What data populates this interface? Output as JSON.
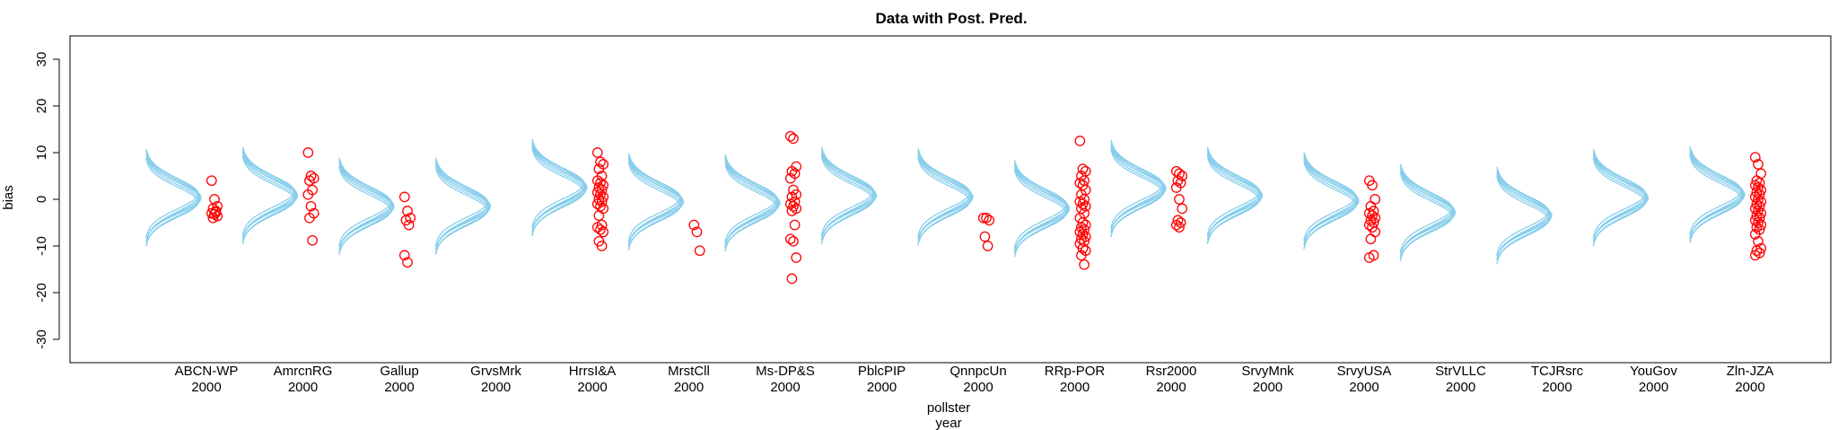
{
  "chart_data": {
    "type": "scatter",
    "title": "Data with Post. Pred.",
    "ylabel": "bias",
    "xlabel_line1": "pollster",
    "xlabel_line2": "year",
    "ylim": [
      -35,
      35
    ],
    "yticks": [
      -30,
      -20,
      -10,
      0,
      10,
      20,
      30
    ],
    "grid": false,
    "legend": "none",
    "colors": {
      "curves": "#87CEEB",
      "points": "#FF0000",
      "axes": "#000000"
    },
    "groups": [
      {
        "pollster": "ABCN-WP",
        "year": "2000",
        "curve_center": 0.3,
        "points": [
          4.0,
          0.0,
          -1.5,
          -2.0,
          -2.5,
          -3.0,
          -3.2,
          -3.6,
          -4.0,
          -2.8
        ]
      },
      {
        "pollster": "AmrcnRG",
        "year": "2000",
        "curve_center": 0.8,
        "points": [
          10.0,
          5.0,
          4.5,
          4.0,
          2.0,
          1.0,
          -1.5,
          -3.0,
          -4.0,
          -8.8
        ]
      },
      {
        "pollster": "Gallup",
        "year": "2000",
        "curve_center": -1.5,
        "points": [
          0.5,
          -2.5,
          -4.0,
          -4.5,
          -5.5,
          -12.0,
          -13.5
        ]
      },
      {
        "pollster": "GrvsMrk",
        "year": "2000",
        "curve_center": -1.5,
        "points": []
      },
      {
        "pollster": "HrrsI&A",
        "year": "2000",
        "curve_center": 2.5,
        "points": [
          10.0,
          8.0,
          7.5,
          6.5,
          5.0,
          4.0,
          3.5,
          3.0,
          2.5,
          2.0,
          1.5,
          1.0,
          0.5,
          0.0,
          -0.5,
          -1.0,
          -1.5,
          -2.0,
          -3.5,
          -5.5,
          -6.0,
          -6.5,
          -7.0,
          -9.0,
          -10.0
        ]
      },
      {
        "pollster": "MrstCll",
        "year": "2000",
        "curve_center": -0.5,
        "points": [
          -5.5,
          -7.0,
          -11.0
        ]
      },
      {
        "pollster": "Ms-DP&S",
        "year": "2000",
        "curve_center": -0.8,
        "points": [
          13.5,
          13.0,
          7.0,
          6.0,
          5.5,
          4.5,
          2.0,
          1.0,
          0.5,
          -0.5,
          -1.0,
          -1.5,
          -2.0,
          -2.5,
          -5.5,
          -8.5,
          -9.0,
          -12.5,
          -17.0
        ]
      },
      {
        "pollster": "PblcPIP",
        "year": "2000",
        "curve_center": 0.8,
        "points": []
      },
      {
        "pollster": "QnnpcUn",
        "year": "2000",
        "curve_center": 0.5,
        "points": [
          -4.0,
          -4.0,
          -4.5,
          -8.0,
          -10.0
        ]
      },
      {
        "pollster": "RRp-POR",
        "year": "2000",
        "curve_center": -2.0,
        "points": [
          12.5,
          6.5,
          6.0,
          5.0,
          4.0,
          3.5,
          3.0,
          2.0,
          1.0,
          0.0,
          -0.5,
          -1.0,
          -1.5,
          -2.0,
          -3.0,
          -4.0,
          -5.0,
          -5.5,
          -6.0,
          -6.5,
          -7.0,
          -7.5,
          -8.0,
          -8.5,
          -9.0,
          -9.5,
          -10.5,
          -11.0,
          -12.0,
          -14.0
        ]
      },
      {
        "pollster": "Rsr2000",
        "year": "2000",
        "curve_center": 2.3,
        "points": [
          6.0,
          5.5,
          5.0,
          4.0,
          3.5,
          2.5,
          0.0,
          -2.0,
          -4.5,
          -5.0,
          -5.5,
          -6.0
        ]
      },
      {
        "pollster": "SrvyMnk",
        "year": "2000",
        "curve_center": 0.8,
        "points": []
      },
      {
        "pollster": "SrvyUSA",
        "year": "2000",
        "curve_center": -0.3,
        "points": [
          4.0,
          3.0,
          0.0,
          -1.5,
          -2.5,
          -3.0,
          -3.5,
          -4.0,
          -4.5,
          -5.0,
          -5.5,
          -6.0,
          -7.0,
          -8.5,
          -12.0,
          -12.5
        ]
      },
      {
        "pollster": "StrVLLC",
        "year": "2000",
        "curve_center": -2.8,
        "points": []
      },
      {
        "pollster": "TCJRsrc",
        "year": "2000",
        "curve_center": -3.5,
        "points": []
      },
      {
        "pollster": "YouGov",
        "year": "2000",
        "curve_center": 0.3,
        "points": []
      },
      {
        "pollster": "Zln-JZA",
        "year": "2000",
        "curve_center": 1.0,
        "points": [
          9.0,
          7.5,
          5.5,
          4.0,
          3.5,
          3.0,
          2.5,
          2.0,
          1.5,
          1.0,
          0.5,
          0.0,
          -0.5,
          -1.0,
          -1.5,
          -2.0,
          -2.5,
          -3.0,
          -3.5,
          -4.0,
          -4.5,
          -5.0,
          -5.5,
          -6.0,
          -6.5,
          -7.5,
          -9.0,
          -10.5,
          -11.0,
          -11.5,
          -12.0
        ]
      }
    ]
  }
}
